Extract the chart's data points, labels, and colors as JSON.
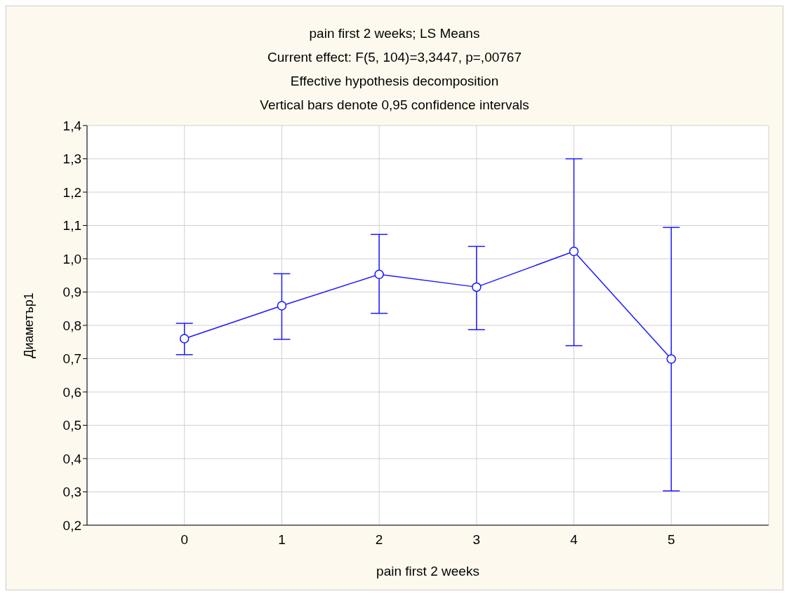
{
  "chart_data": {
    "type": "line",
    "title": "pain first 2 weeks; LS Means",
    "annotations": [
      "Current effect: F(5, 104)=3,3447, p=,00767",
      "Effective hypothesis decomposition",
      "Vertical bars denote 0,95 confidence intervals"
    ],
    "xlabel": "pain first 2 weeks",
    "ylabel": "Диаметър1",
    "x": [
      0,
      1,
      2,
      3,
      4,
      5
    ],
    "values": [
      0.76,
      0.859,
      0.953,
      0.915,
      1.022,
      0.699
    ],
    "errors": [
      [
        0.712,
        0.806
      ],
      [
        0.758,
        0.955
      ],
      [
        0.836,
        1.073
      ],
      [
        0.787,
        1.037
      ],
      [
        0.739,
        1.3
      ],
      [
        0.303,
        1.094
      ]
    ],
    "color": "#1a1aff",
    "marker": "circle",
    "line_style": "solid",
    "grid": true,
    "xlim": [
      -1,
      6
    ],
    "xticks": [
      0,
      1,
      2,
      3,
      4,
      5
    ],
    "ylim": [
      0.2,
      1.4
    ],
    "yticks": [
      {
        "value": 0.2,
        "label": "0,2"
      },
      {
        "value": 0.3,
        "label": "0,3"
      },
      {
        "value": 0.4,
        "label": "0,4"
      },
      {
        "value": 0.5,
        "label": "0,5"
      },
      {
        "value": 0.6,
        "label": "0,6"
      },
      {
        "value": 0.7,
        "label": "0,7"
      },
      {
        "value": 0.8,
        "label": "0,8"
      },
      {
        "value": 0.9,
        "label": "0,9"
      },
      {
        "value": 1.0,
        "label": "1,0"
      },
      {
        "value": 1.1,
        "label": "1,1"
      },
      {
        "value": 1.2,
        "label": "1,2"
      },
      {
        "value": 1.3,
        "label": "1,3"
      },
      {
        "value": 1.4,
        "label": "1,4"
      }
    ]
  }
}
